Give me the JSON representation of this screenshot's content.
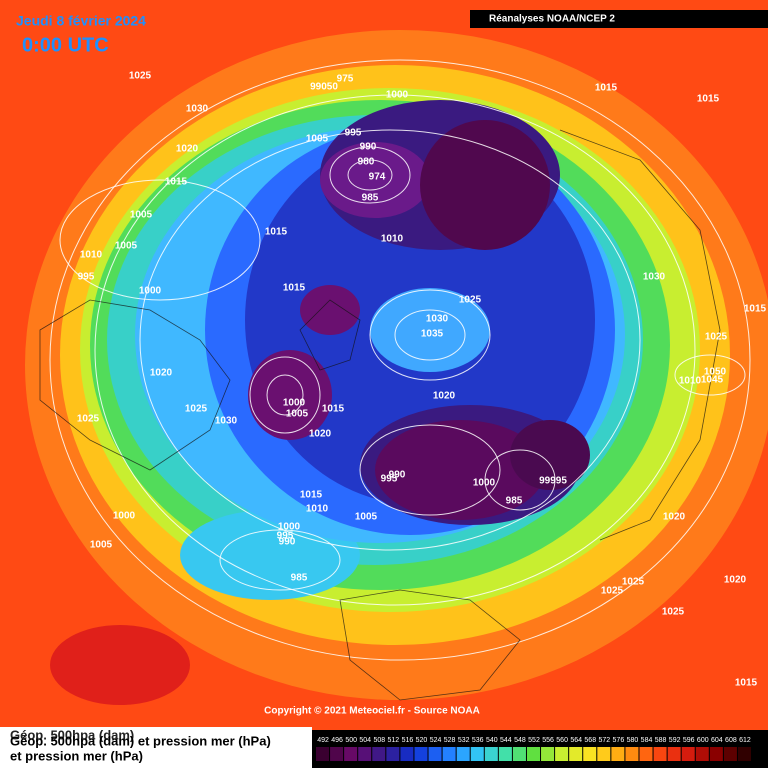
{
  "header": {
    "date": "Jeudi 8 février 2024",
    "time": "0:00 UTC",
    "source": "Réanalyses NOAA/NCEP 2"
  },
  "copyright": "Copyright © 2021 Meteociel.fr - Source NOAA",
  "caption": {
    "line1": "Géop. 500hpa (dam)",
    "overlap": "Géop. 500hpa (dam) et pression mer (hPa)",
    "line2": "et pression mer (hPa)"
  },
  "colorbar": [
    492,
    496,
    500,
    504,
    508,
    512,
    516,
    520,
    524,
    528,
    532,
    536,
    540,
    544,
    548,
    552,
    556,
    560,
    564,
    568,
    572,
    576,
    580,
    584,
    588,
    592,
    596,
    600,
    604,
    608,
    612
  ],
  "isobar_labels": [
    "1025",
    "1030",
    "1020",
    "1015",
    "1005",
    "1005",
    "1010",
    "995",
    "1000",
    "1020",
    "1025",
    "1025",
    "1030",
    "1000",
    "1005",
    "975",
    "99050",
    "1000",
    "1005",
    "995",
    "990",
    "980",
    "974",
    "985",
    "1015",
    "1010",
    "1015",
    "1025",
    "1030",
    "1035",
    "1020",
    "1000",
    "1005",
    "1015",
    "1020",
    "1015",
    "1010",
    "1005",
    "1000",
    "995",
    "990",
    "985",
    "990",
    "995",
    "1000",
    "985",
    "99995",
    "1015",
    "1015",
    "1030",
    "1015",
    "1025",
    "1050",
    "1045",
    "1010",
    "1020",
    "1025",
    "1025",
    "1025",
    "1020",
    "1015"
  ]
}
